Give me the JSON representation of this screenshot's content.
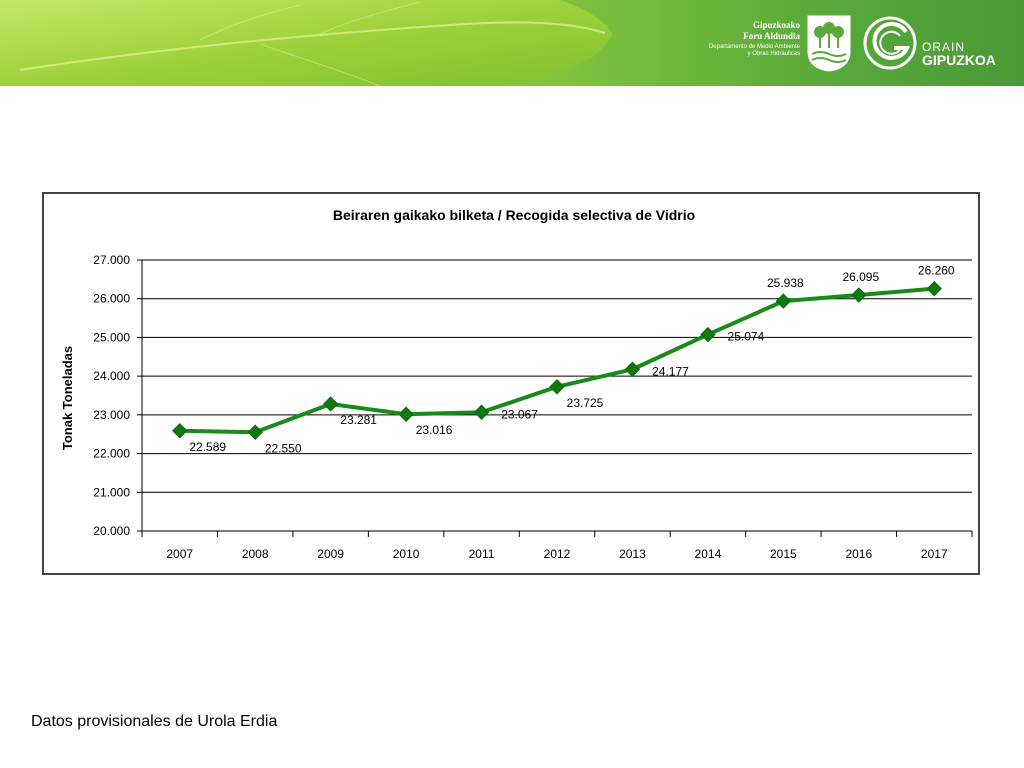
{
  "header": {
    "org_line1": "Gipuzkoako",
    "org_line2": "Foru Aldundia",
    "dept_line1": "Departamento de Medio Ambiente",
    "dept_line2": "y Obras Hidráulicas",
    "brand_top": "ORAIN",
    "brand_bottom": "GIPUZKOA",
    "colors": {
      "banner_green": "#6cb842",
      "leaf_green": "#a8d63e"
    }
  },
  "chart_data": {
    "type": "line",
    "title": "Beiraren gaikako bilketa / Recogida selectiva de Vidrio",
    "ylabel": "Tonak Toneladas",
    "xlabel": "",
    "categories": [
      "2007",
      "2008",
      "2009",
      "2010",
      "2011",
      "2012",
      "2013",
      "2014",
      "2015",
      "2016",
      "2017"
    ],
    "values": [
      22589,
      22550,
      23281,
      23016,
      23067,
      23725,
      24177,
      25074,
      25938,
      26095,
      26260
    ],
    "data_labels": [
      "22.589",
      "22.550",
      "23.281",
      "23.016",
      "23.067",
      "23.725",
      "24.177",
      "25.074",
      "25.938",
      "26.095",
      "26.260"
    ],
    "y_ticks": [
      20000,
      21000,
      22000,
      23000,
      24000,
      25000,
      26000,
      27000
    ],
    "y_tick_labels": [
      "20.000",
      "21.000",
      "22.000",
      "23.000",
      "24.000",
      "25.000",
      "26.000",
      "27.000"
    ],
    "ylim": [
      20000,
      27000
    ],
    "grid": true,
    "marker": "diamond",
    "line_color": "#1a8a1a"
  },
  "footer": {
    "note": "Datos provisionales de Urola Erdia"
  }
}
